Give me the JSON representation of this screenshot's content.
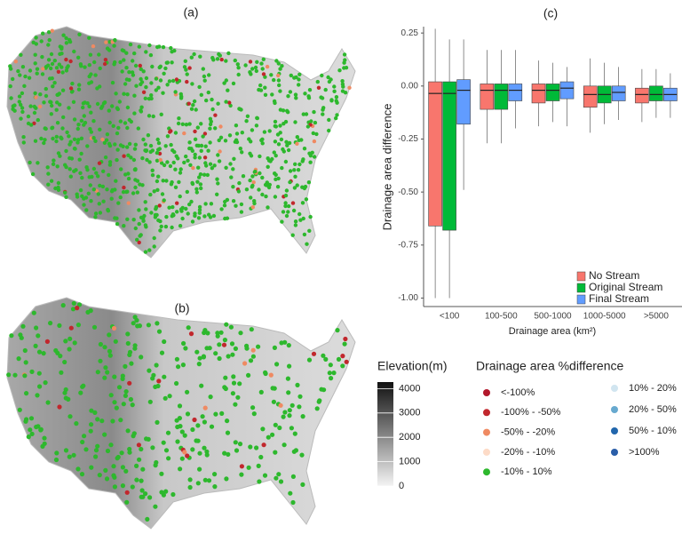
{
  "panels": {
    "a": "(a)",
    "b": "(b)"
  },
  "chart_data": {
    "type": "box",
    "title": "(c)",
    "y_label": "Drainage area difference",
    "x_label": "Drainage area (km²)",
    "categories": [
      "<100",
      "100-500",
      "500-1000",
      "1000-5000",
      ">5000"
    ],
    "ylim": [
      -1.04,
      0.28
    ],
    "yticks": [
      {
        "value": 0.25,
        "label": "0.25"
      },
      {
        "value": 0,
        "label": "0.00"
      },
      {
        "value": -0.25,
        "label": "-0.25"
      },
      {
        "value": -0.5,
        "label": "-0.50"
      },
      {
        "value": -0.75,
        "label": "-0.75"
      },
      {
        "value": -1,
        "label": "-1.00"
      }
    ],
    "grid": false,
    "series": [
      {
        "name": "No Stream",
        "color": "#f8766d",
        "min": [
          -1.0,
          -0.27,
          -0.19,
          -0.22,
          -0.17
        ],
        "q1": [
          -0.66,
          -0.11,
          -0.08,
          -0.1,
          -0.08
        ],
        "median": [
          -0.035,
          -0.02,
          -0.02,
          -0.04,
          -0.04
        ],
        "q3": [
          0.02,
          0.01,
          0.01,
          0.0,
          -0.01
        ],
        "max": [
          0.27,
          0.17,
          0.12,
          0.13,
          0.08
        ]
      },
      {
        "name": "Original Stream",
        "color": "#00ba38",
        "min": [
          -1.0,
          -0.27,
          -0.17,
          -0.18,
          -0.15
        ],
        "q1": [
          -0.68,
          -0.11,
          -0.07,
          -0.08,
          -0.07
        ],
        "median": [
          -0.035,
          -0.02,
          -0.02,
          -0.04,
          -0.04
        ],
        "q3": [
          0.02,
          0.01,
          0.01,
          0.0,
          0.0
        ],
        "max": [
          0.22,
          0.17,
          0.11,
          0.11,
          0.08
        ]
      },
      {
        "name": "Final Stream",
        "color": "#619cff",
        "min": [
          -0.49,
          -0.2,
          -0.19,
          -0.16,
          -0.15
        ],
        "q1": [
          -0.18,
          -0.07,
          -0.06,
          -0.07,
          -0.07
        ],
        "median": [
          -0.02,
          -0.02,
          -0.01,
          -0.03,
          -0.04
        ],
        "q3": [
          0.03,
          0.01,
          0.02,
          0.0,
          -0.01
        ],
        "max": [
          0.22,
          0.17,
          0.09,
          0.09,
          0.06
        ]
      }
    ]
  },
  "elevation_legend": {
    "title": "Elevation(m)",
    "lim": [
      0,
      4270
    ],
    "ticks": [
      4000,
      3000,
      2000,
      1000,
      0
    ]
  },
  "difference_legend": {
    "title": "Drainage area %difference",
    "items": [
      {
        "label": "<-100%",
        "color": "#b2182b"
      },
      {
        "label": "-100% - -50%",
        "color": "#c1272d"
      },
      {
        "label": "-50% - -20%",
        "color": "#ef8a62"
      },
      {
        "label": "-20% - -10%",
        "color": "#fddbc7"
      },
      {
        "label": "-10% - 10%",
        "color": "#2db82d"
      },
      {
        "label": "10% - 20%",
        "color": "#d1e5f0"
      },
      {
        "label": "20% - 50%",
        "color": "#67a9cf"
      },
      {
        "label": "50% - 10%",
        "color": "#2166ac"
      },
      {
        "label": ">100%",
        "color": "#2a5ea8"
      }
    ]
  }
}
